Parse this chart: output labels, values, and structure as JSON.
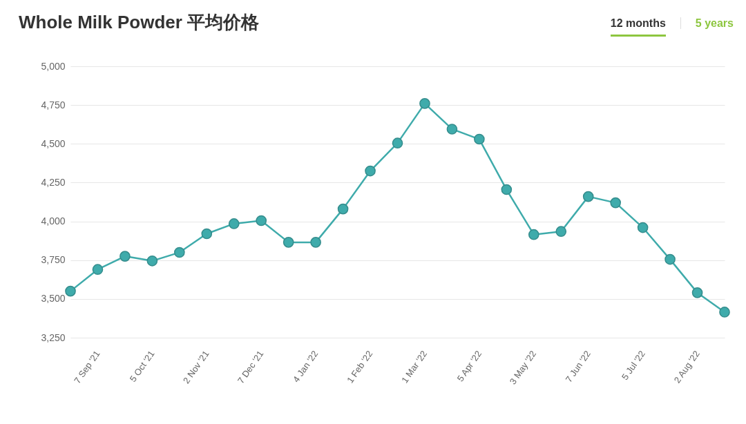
{
  "chart_data": {
    "type": "line",
    "title": "Whole Milk Powder 平均价格",
    "categories": [
      null,
      "7 Sep '21",
      null,
      "5 Oct '21",
      null,
      "2 Nov '21",
      null,
      "7 Dec '21",
      null,
      "4 Jan '22",
      null,
      "1 Feb '22",
      null,
      "1 Mar '22",
      null,
      "5 Apr '22",
      null,
      "3 May '22",
      null,
      "7 Jun '22",
      null,
      "5 Jul '22",
      null,
      "2 Aug '22",
      null
    ],
    "series": [
      {
        "color": "#3fabab",
        "values": [
          3550,
          3690,
          3775,
          3745,
          3800,
          3920,
          3985,
          4005,
          3865,
          3865,
          4080,
          4325,
          4505,
          4760,
          4595,
          4530,
          4205,
          3915,
          3935,
          4160,
          4120,
          3960,
          3755,
          3540,
          3415
        ]
      }
    ],
    "ylim": [
      3250,
      5000
    ],
    "yticks": [
      {
        "value": 3250,
        "label": "3,250"
      },
      {
        "value": 3500,
        "label": "3,500"
      },
      {
        "value": 3750,
        "label": "3,750"
      },
      {
        "value": 4000,
        "label": "4,000"
      },
      {
        "value": 4250,
        "label": "4,250"
      },
      {
        "value": 4500,
        "label": "4,500"
      },
      {
        "value": 4750,
        "label": "4,750"
      },
      {
        "value": 5000,
        "label": "5,000"
      }
    ],
    "grid": "y",
    "marker": "circle",
    "annotations": [
      "12 months",
      "5 years"
    ]
  }
}
